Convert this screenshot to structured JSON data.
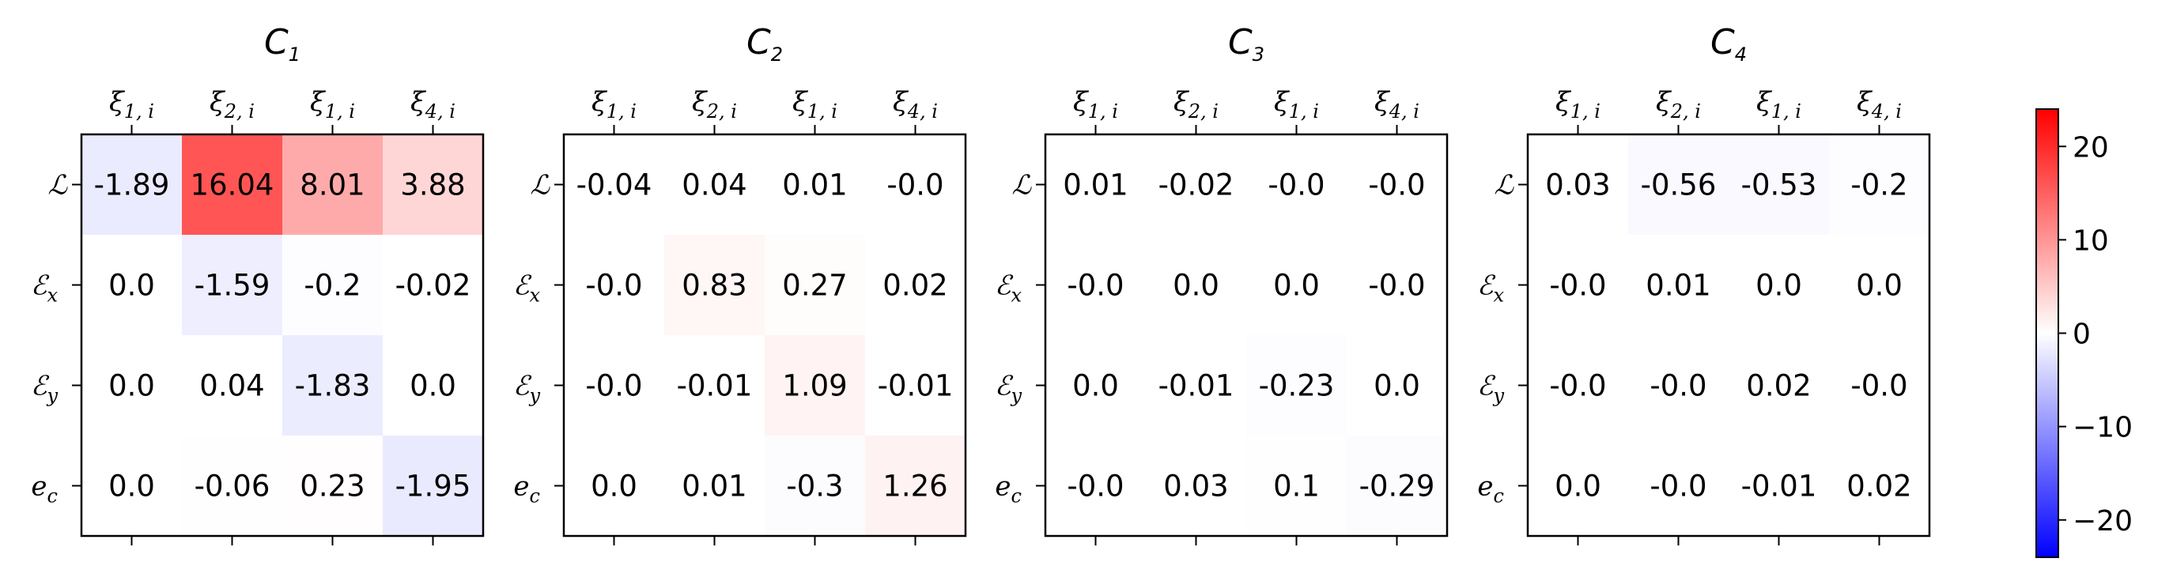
{
  "chart_data": {
    "type": "heatmap",
    "colormap": "bwr",
    "vmin": -24,
    "vmax": 24,
    "colorbar": {
      "ticks": [
        20,
        10,
        0,
        -10,
        -20
      ],
      "tick_labels": [
        "20",
        "10",
        "0",
        "−10",
        "−20"
      ]
    },
    "panels": [
      {
        "title_main": "C",
        "title_sub": "1",
        "x_labels": [
          {
            "main": "ξ",
            "sub": "1, i"
          },
          {
            "main": "ξ",
            "sub": "2, i"
          },
          {
            "main": "ξ",
            "sub": "1, i"
          },
          {
            "main": "ξ",
            "sub": "4, i"
          }
        ],
        "y_labels": [
          {
            "main": "ℒ",
            "sub": ""
          },
          {
            "main": "ℰ",
            "sub": "x"
          },
          {
            "main": "ℰ",
            "sub": "y"
          },
          {
            "main": "e",
            "sub": "c"
          }
        ],
        "values": [
          [
            -1.89,
            16.04,
            8.01,
            3.88
          ],
          [
            0.0,
            -1.59,
            -0.2,
            -0.02
          ],
          [
            0.0,
            0.04,
            -1.83,
            0.0
          ],
          [
            0.0,
            -0.06,
            0.23,
            -1.95
          ]
        ],
        "labels": [
          [
            "-1.89",
            "16.04",
            "8.01",
            "3.88"
          ],
          [
            "0.0",
            "-1.59",
            "-0.2",
            "-0.02"
          ],
          [
            "0.0",
            "0.04",
            "-1.83",
            "0.0"
          ],
          [
            "0.0",
            "-0.06",
            "0.23",
            "-1.95"
          ]
        ]
      },
      {
        "title_main": "C",
        "title_sub": "2",
        "x_labels": [
          {
            "main": "ξ",
            "sub": "1, i"
          },
          {
            "main": "ξ",
            "sub": "2, i"
          },
          {
            "main": "ξ",
            "sub": "1, i"
          },
          {
            "main": "ξ",
            "sub": "4, i"
          }
        ],
        "y_labels": [
          {
            "main": "ℒ",
            "sub": ""
          },
          {
            "main": "ℰ",
            "sub": "x"
          },
          {
            "main": "ℰ",
            "sub": "y"
          },
          {
            "main": "e",
            "sub": "c"
          }
        ],
        "values": [
          [
            -0.04,
            0.04,
            0.01,
            -0.0
          ],
          [
            -0.0,
            0.83,
            0.27,
            0.02
          ],
          [
            -0.0,
            -0.01,
            1.09,
            -0.01
          ],
          [
            0.0,
            0.01,
            -0.3,
            1.26
          ]
        ],
        "labels": [
          [
            "-0.04",
            "0.04",
            "0.01",
            "-0.0"
          ],
          [
            "-0.0",
            "0.83",
            "0.27",
            "0.02"
          ],
          [
            "-0.0",
            "-0.01",
            "1.09",
            "-0.01"
          ],
          [
            "0.0",
            "0.01",
            "-0.3",
            "1.26"
          ]
        ]
      },
      {
        "title_main": "C",
        "title_sub": "3",
        "x_labels": [
          {
            "main": "ξ",
            "sub": "1, i"
          },
          {
            "main": "ξ",
            "sub": "2, i"
          },
          {
            "main": "ξ",
            "sub": "1, i"
          },
          {
            "main": "ξ",
            "sub": "4, i"
          }
        ],
        "y_labels": [
          {
            "main": "ℒ",
            "sub": ""
          },
          {
            "main": "ℰ",
            "sub": "x"
          },
          {
            "main": "ℰ",
            "sub": "y"
          },
          {
            "main": "e",
            "sub": "c"
          }
        ],
        "values": [
          [
            0.01,
            -0.02,
            -0.0,
            -0.0
          ],
          [
            -0.0,
            0.0,
            0.0,
            -0.0
          ],
          [
            0.0,
            -0.01,
            -0.23,
            0.0
          ],
          [
            -0.0,
            0.03,
            0.1,
            -0.29
          ]
        ],
        "labels": [
          [
            "0.01",
            "-0.02",
            "-0.0",
            "-0.0"
          ],
          [
            "-0.0",
            "0.0",
            "0.0",
            "-0.0"
          ],
          [
            "0.0",
            "-0.01",
            "-0.23",
            "0.0"
          ],
          [
            "-0.0",
            "0.03",
            "0.1",
            "-0.29"
          ]
        ]
      },
      {
        "title_main": "C",
        "title_sub": "4",
        "x_labels": [
          {
            "main": "ξ",
            "sub": "1, i"
          },
          {
            "main": "ξ",
            "sub": "2, i"
          },
          {
            "main": "ξ",
            "sub": "1, i"
          },
          {
            "main": "ξ",
            "sub": "4, i"
          }
        ],
        "y_labels": [
          {
            "main": "ℒ",
            "sub": ""
          },
          {
            "main": "ℰ",
            "sub": "x"
          },
          {
            "main": "ℰ",
            "sub": "y"
          },
          {
            "main": "e",
            "sub": "c"
          }
        ],
        "values": [
          [
            0.03,
            -0.56,
            -0.53,
            -0.2
          ],
          [
            -0.0,
            0.01,
            0.0,
            0.0
          ],
          [
            -0.0,
            -0.0,
            0.02,
            -0.0
          ],
          [
            0.0,
            -0.0,
            -0.01,
            0.02
          ]
        ],
        "labels": [
          [
            "0.03",
            "-0.56",
            "-0.53",
            "-0.2"
          ],
          [
            "-0.0",
            "0.01",
            "0.0",
            "0.0"
          ],
          [
            "-0.0",
            "-0.0",
            "0.02",
            "-0.0"
          ],
          [
            "0.0",
            "-0.0",
            "-0.01",
            "0.02"
          ]
        ]
      }
    ]
  }
}
